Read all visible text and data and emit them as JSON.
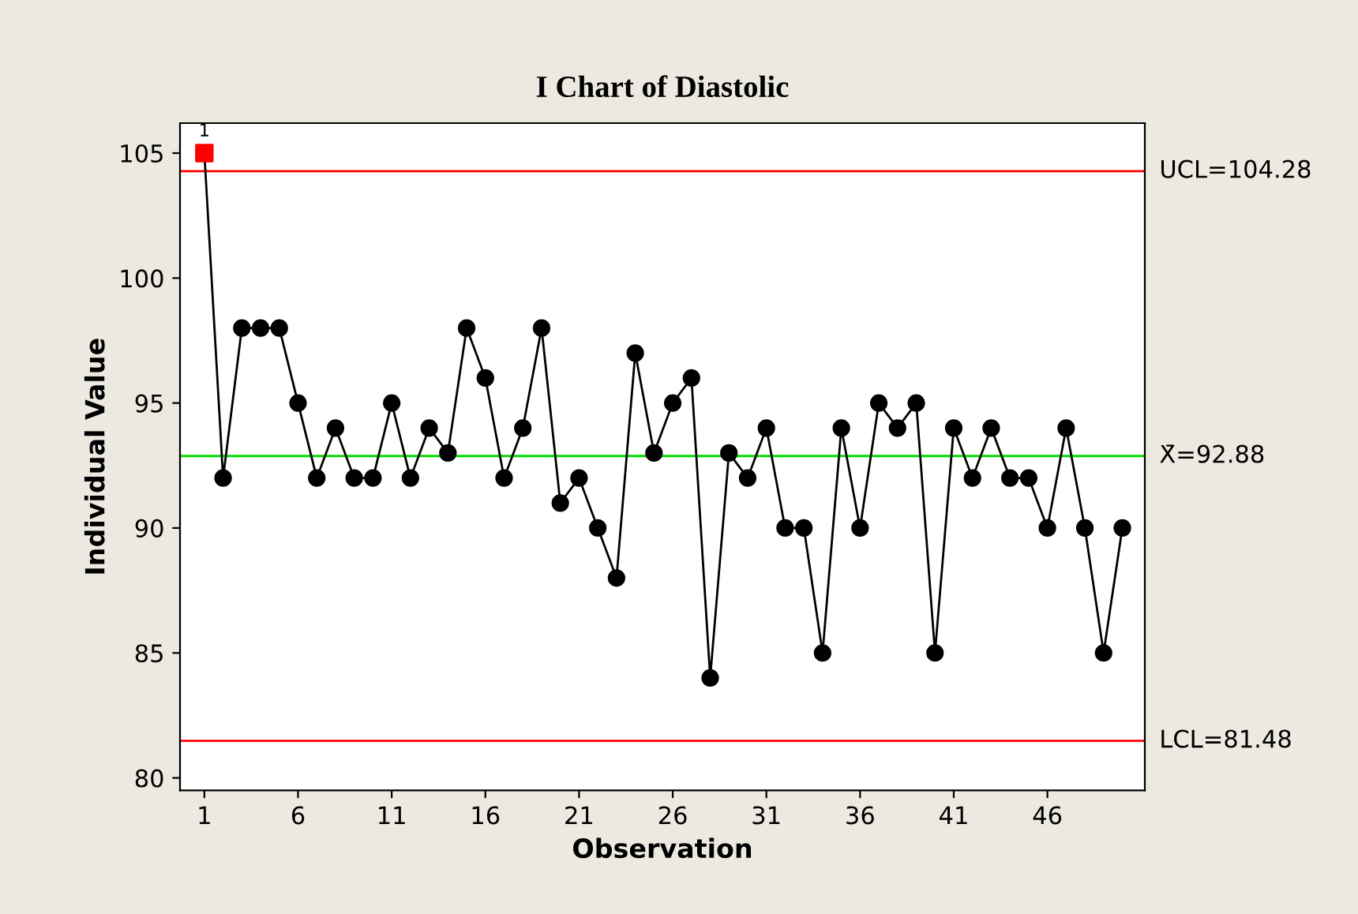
{
  "chart_data": {
    "type": "line",
    "title": "I Chart of Diastolic",
    "xlabel": "Observation",
    "ylabel": "Individual Value",
    "x": [
      1,
      2,
      3,
      4,
      5,
      6,
      7,
      8,
      9,
      10,
      11,
      12,
      13,
      14,
      15,
      16,
      17,
      18,
      19,
      20,
      21,
      22,
      23,
      24,
      25,
      26,
      27,
      28,
      29,
      30,
      31,
      32,
      33,
      34,
      35,
      36,
      37,
      38,
      39,
      40,
      41,
      42,
      43,
      44,
      45,
      46,
      47,
      48,
      49,
      50
    ],
    "series": [
      {
        "color": "#000000",
        "marker": "circle",
        "values": [
          105,
          92,
          98,
          98,
          98,
          95,
          92,
          94,
          92,
          92,
          95,
          92,
          94,
          93,
          98,
          96,
          92,
          94,
          98,
          91,
          92,
          90,
          88,
          97,
          93,
          95,
          96,
          84,
          93,
          92,
          94,
          90,
          90,
          85,
          94,
          90,
          95,
          94,
          95,
          85,
          94,
          92,
          94,
          92,
          92,
          90,
          94,
          90,
          85,
          90
        ]
      },
      {
        "type": "scatter",
        "color": "#ff0000",
        "marker": "square",
        "x": [
          1
        ],
        "values": [
          105
        ]
      }
    ],
    "annotations": [
      {
        "text": "1",
        "x": 1,
        "y": 105
      }
    ],
    "ref_lines": [
      {
        "axis": "y",
        "value": 104.28,
        "label": "UCL=104.28",
        "color": "#ff0000"
      },
      {
        "axis": "y",
        "value": 92.88,
        "label": "X̄=92.88",
        "color": "#00dd00"
      },
      {
        "axis": "y",
        "value": 81.48,
        "label": "LCL=81.48",
        "color": "#ff0000"
      }
    ],
    "xlim": [
      -0.3,
      51.2
    ],
    "xticks": [
      1,
      6,
      11,
      16,
      21,
      26,
      31,
      36,
      41,
      46
    ],
    "ylim": [
      79.5,
      106.2
    ],
    "yticks": [
      80,
      85,
      90,
      95,
      100,
      105
    ],
    "grid": false,
    "legend": false
  }
}
